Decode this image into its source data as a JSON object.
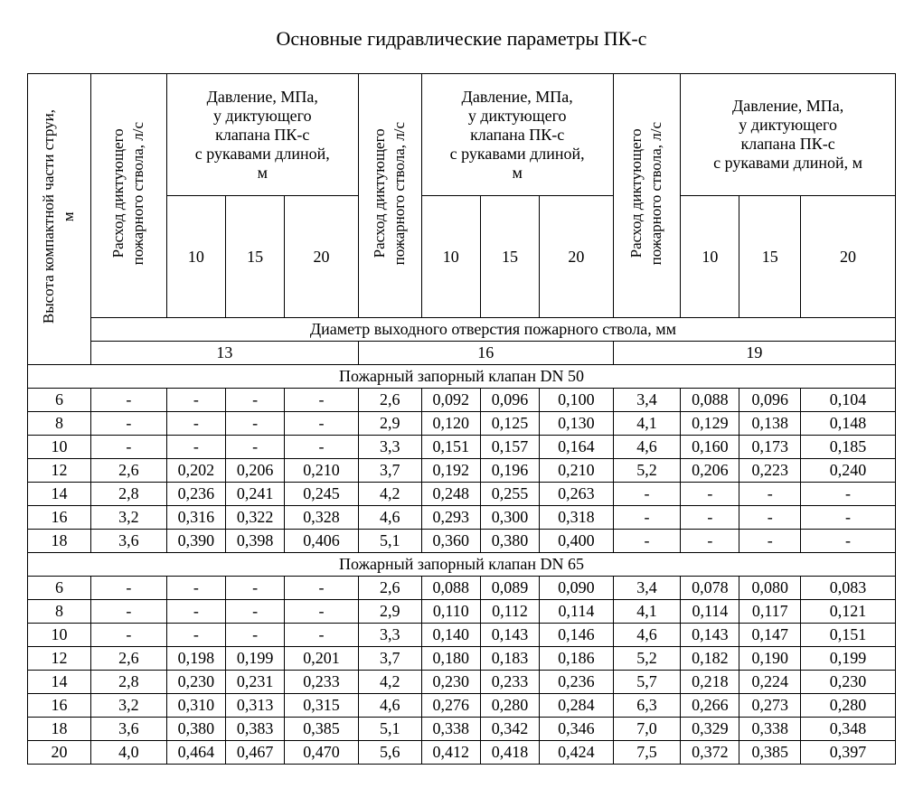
{
  "title": "Основные гидравлические параметры ПК-с",
  "header": {
    "col1_l1": "Высота компактной части струи,",
    "col1_l2": "м",
    "flowcol_l1": "Расход диктующего",
    "flowcol_l2": "пожарного ствола, л/с",
    "pressure_l1": "Давление, МПа,",
    "pressure_l2": "у диктующего",
    "pressure_l3": "клапана ПК-с",
    "pressure_l4": "с рукавами длиной,",
    "pressure_l5": "м",
    "pressure_l4_alt": "с рукавами длиной, м",
    "len10": "10",
    "len15": "15",
    "len20": "20",
    "diam_row": "Диаметр выходного отверстия пожарного ствола, мм",
    "d13": "13",
    "d16": "16",
    "d19": "19"
  },
  "sections": [
    {
      "title": "Пожарный запорный клапан DN 50",
      "rows": [
        [
          "6",
          "-",
          "-",
          "-",
          "-",
          "2,6",
          "0,092",
          "0,096",
          "0,100",
          "3,4",
          "0,088",
          "0,096",
          "0,104"
        ],
        [
          "8",
          "-",
          "-",
          "-",
          "-",
          "2,9",
          "0,120",
          "0,125",
          "0,130",
          "4,1",
          "0,129",
          "0,138",
          "0,148"
        ],
        [
          "10",
          "-",
          "-",
          "-",
          "-",
          "3,3",
          "0,151",
          "0,157",
          "0,164",
          "4,6",
          "0,160",
          "0,173",
          "0,185"
        ],
        [
          "12",
          "2,6",
          "0,202",
          "0,206",
          "0,210",
          "3,7",
          "0,192",
          "0,196",
          "0,210",
          "5,2",
          "0,206",
          "0,223",
          "0,240"
        ],
        [
          "14",
          "2,8",
          "0,236",
          "0,241",
          "0,245",
          "4,2",
          "0,248",
          "0,255",
          "0,263",
          "-",
          "-",
          "-",
          "-"
        ],
        [
          "16",
          "3,2",
          "0,316",
          "0,322",
          "0,328",
          "4,6",
          "0,293",
          "0,300",
          "0,318",
          "-",
          "-",
          "-",
          "-"
        ],
        [
          "18",
          "3,6",
          "0,390",
          "0,398",
          "0,406",
          "5,1",
          "0,360",
          "0,380",
          "0,400",
          "-",
          "-",
          "-",
          "-"
        ]
      ]
    },
    {
      "title": "Пожарный запорный клапан DN 65",
      "rows": [
        [
          "6",
          "-",
          "-",
          "-",
          "-",
          "2,6",
          "0,088",
          "0,089",
          "0,090",
          "3,4",
          "0,078",
          "0,080",
          "0,083"
        ],
        [
          "8",
          "-",
          "-",
          "-",
          "-",
          "2,9",
          "0,110",
          "0,112",
          "0,114",
          "4,1",
          "0,114",
          "0,117",
          "0,121"
        ],
        [
          "10",
          "-",
          "-",
          "-",
          "-",
          "3,3",
          "0,140",
          "0,143",
          "0,146",
          "4,6",
          "0,143",
          "0,147",
          "0,151"
        ],
        [
          "12",
          "2,6",
          "0,198",
          "0,199",
          "0,201",
          "3,7",
          "0,180",
          "0,183",
          "0,186",
          "5,2",
          "0,182",
          "0,190",
          "0,199"
        ],
        [
          "14",
          "2,8",
          "0,230",
          "0,231",
          "0,233",
          "4,2",
          "0,230",
          "0,233",
          "0,236",
          "5,7",
          "0,218",
          "0,224",
          "0,230"
        ],
        [
          "16",
          "3,2",
          "0,310",
          "0,313",
          "0,315",
          "4,6",
          "0,276",
          "0,280",
          "0,284",
          "6,3",
          "0,266",
          "0,273",
          "0,280"
        ],
        [
          "18",
          "3,6",
          "0,380",
          "0,383",
          "0,385",
          "5,1",
          "0,338",
          "0,342",
          "0,346",
          "7,0",
          "0,329",
          "0,338",
          "0,348"
        ],
        [
          "20",
          "4,0",
          "0,464",
          "0,467",
          "0,470",
          "5,6",
          "0,412",
          "0,418",
          "0,424",
          "7,5",
          "0,372",
          "0,385",
          "0,397"
        ]
      ]
    }
  ],
  "style": {
    "border_color": "#000000",
    "background_color": "#ffffff",
    "text_color": "#000000",
    "font_family": "Times New Roman",
    "title_fontsize": 22,
    "cell_fontsize": 18
  }
}
